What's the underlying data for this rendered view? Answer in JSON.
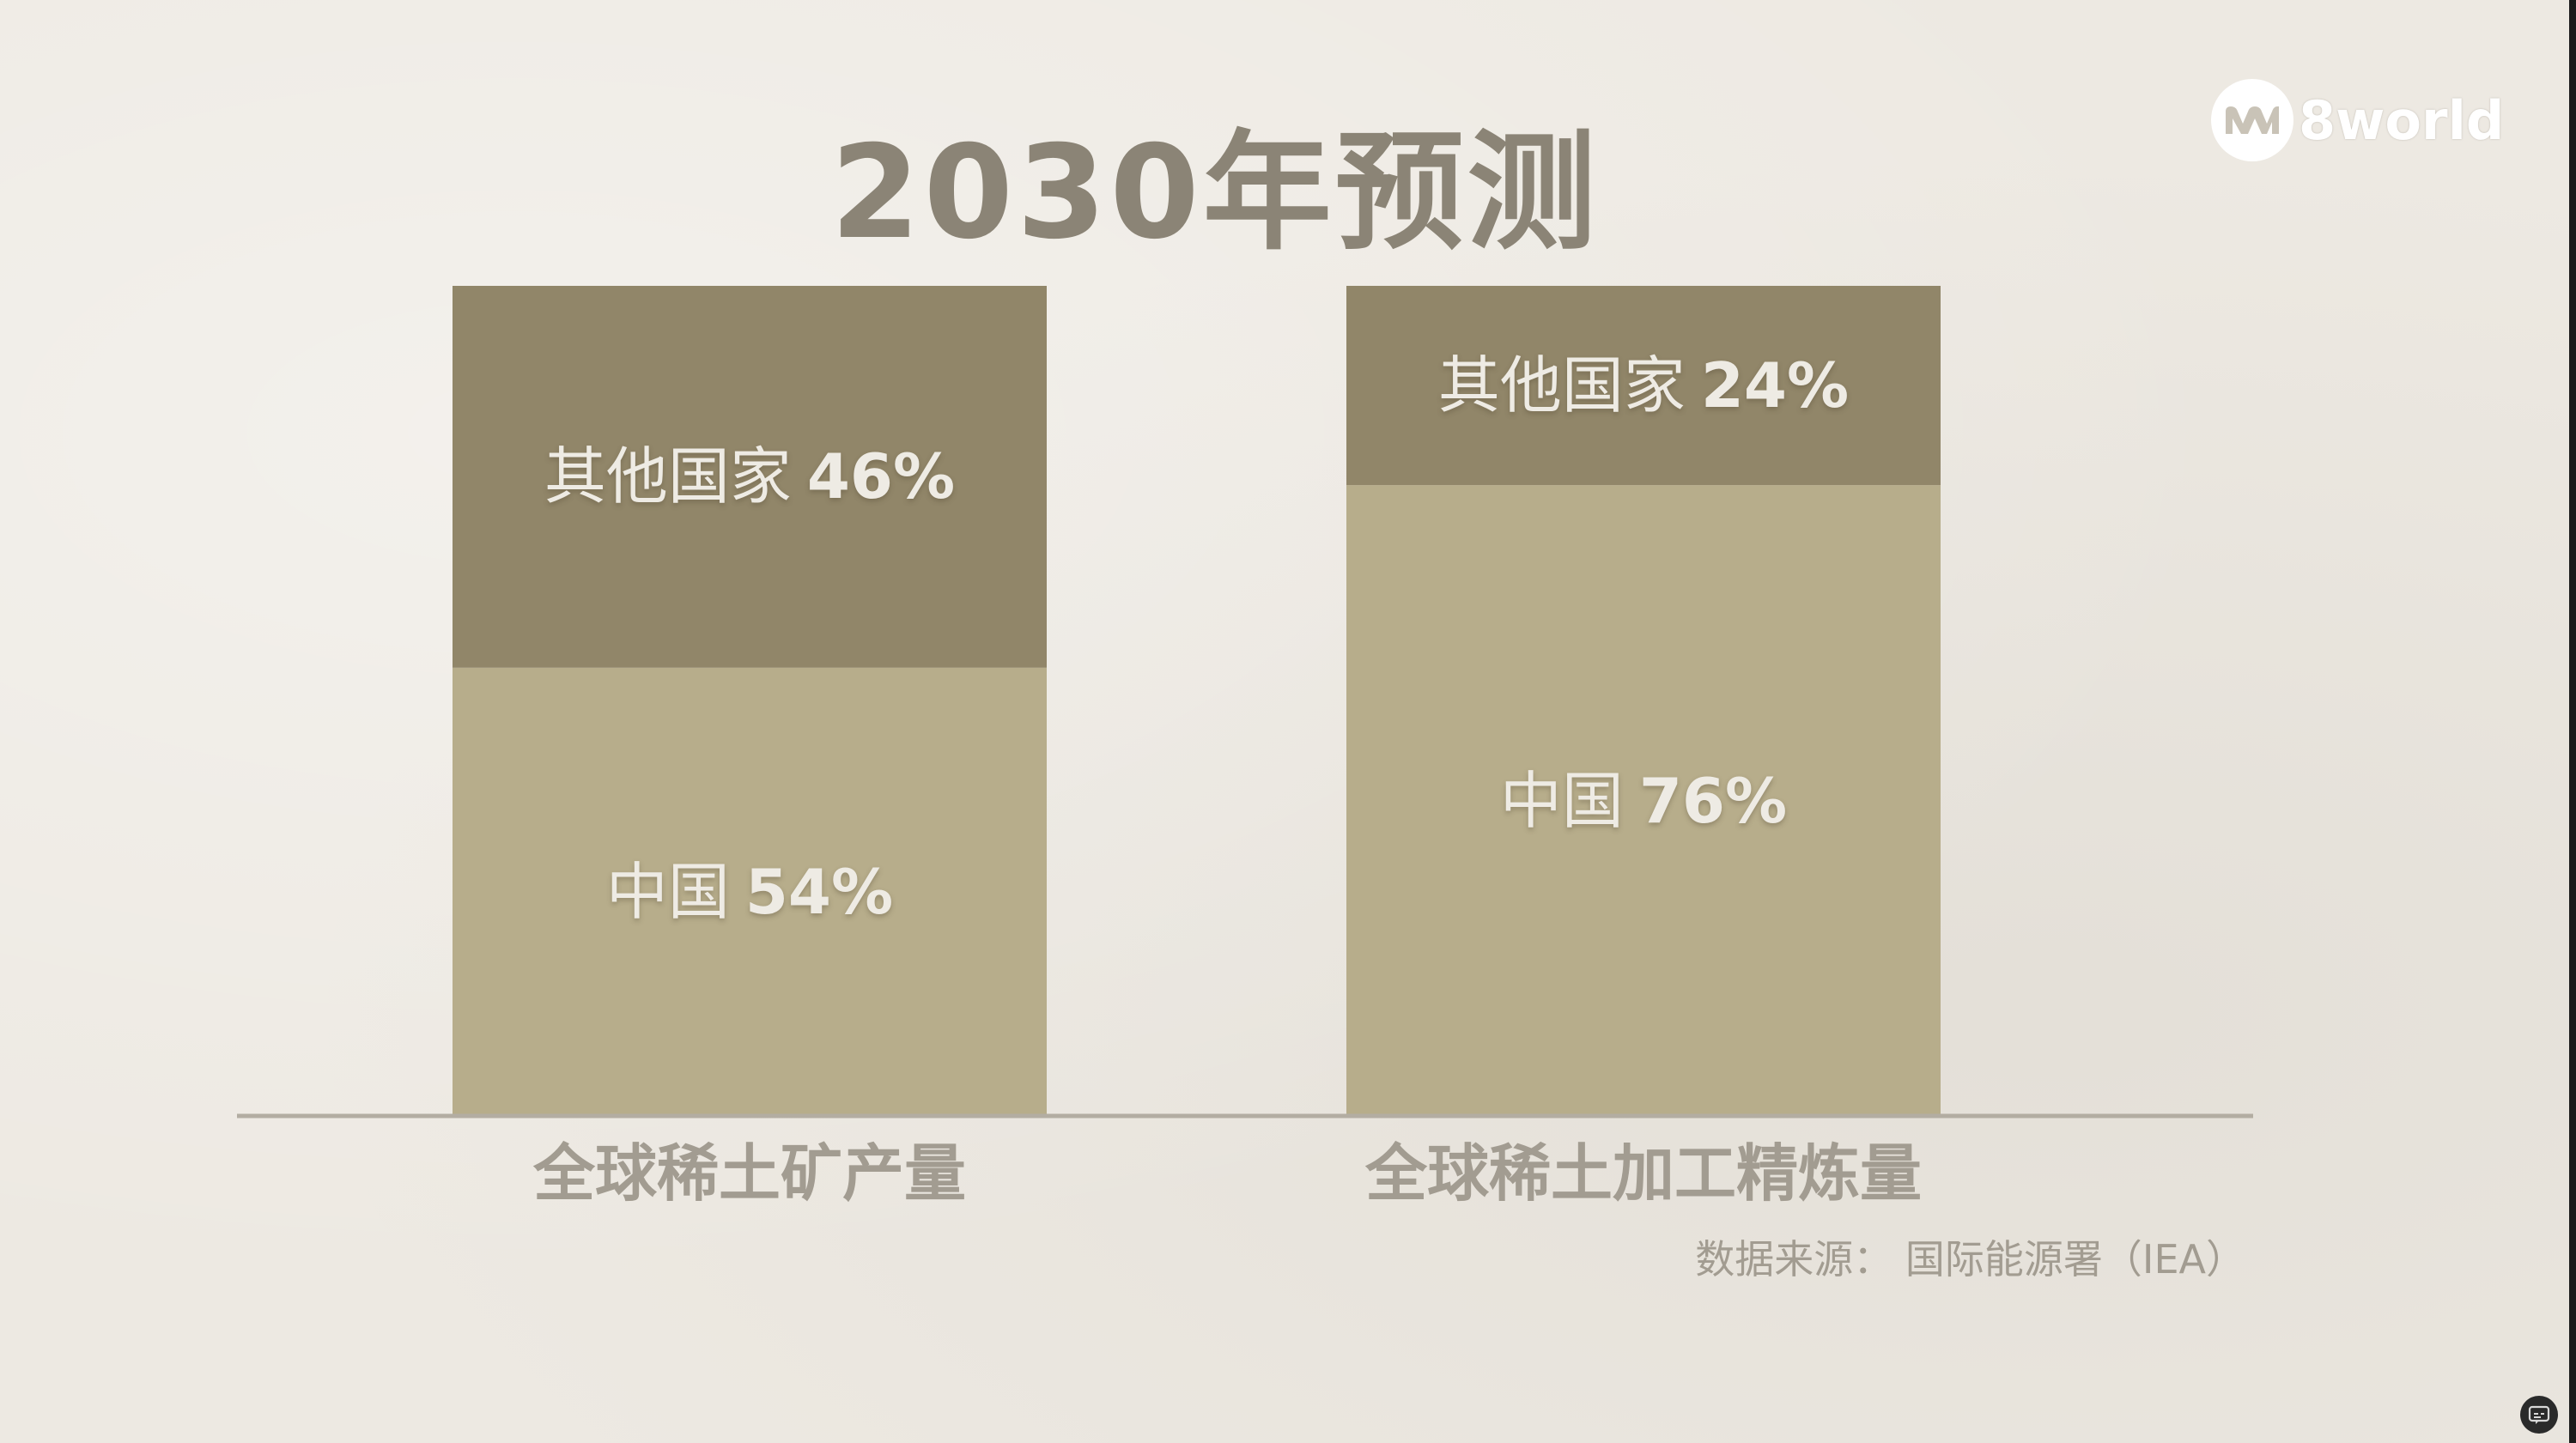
{
  "title": "2030年预测",
  "logo": {
    "text": "8world",
    "icon": "8world-logo-icon"
  },
  "source": "数据来源： 国际能源署（IEA）",
  "colors": {
    "china": "#b7ad8b",
    "others": "#918669",
    "baseline": "#b3ada2",
    "label": "#eeebe4",
    "category": "#a29c91"
  },
  "chart_data": {
    "type": "bar",
    "stacked": true,
    "categories": [
      "全球稀土矿产量",
      "全球稀土加工精炼量"
    ],
    "ylim": [
      0,
      100
    ],
    "series": [
      {
        "name": "中国",
        "values": [
          54,
          76
        ],
        "labels": [
          "54%",
          "76%"
        ]
      },
      {
        "name": "其他国家",
        "values": [
          46,
          24
        ],
        "labels": [
          "46%",
          "24%"
        ]
      }
    ]
  },
  "controls": {
    "captions_icon": "captions-icon"
  }
}
